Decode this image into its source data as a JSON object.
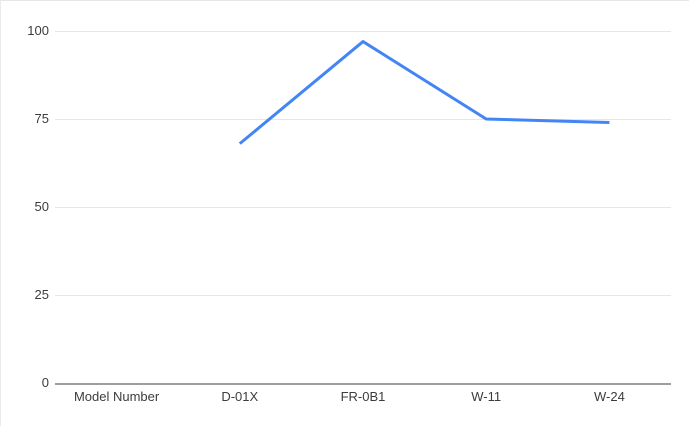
{
  "chart_data": {
    "type": "line",
    "title": "",
    "xlabel": "",
    "ylabel": "",
    "categories": [
      "Model Number",
      "D-01X",
      "FR-0B1",
      "W-11",
      "W-24"
    ],
    "series": [
      {
        "name": "",
        "values": [
          null,
          68,
          97,
          75,
          74
        ]
      }
    ],
    "ylim": [
      0,
      100
    ],
    "yticks": [
      0,
      25,
      50,
      75,
      100
    ],
    "grid": true,
    "legend_position": "none",
    "markers": false,
    "colors": {
      "line": "#4285f4",
      "gridline": "#e6e6e6",
      "axis_line": "#9e9e9e",
      "label_text": "#3c3c3c",
      "background": "#ffffff"
    }
  }
}
